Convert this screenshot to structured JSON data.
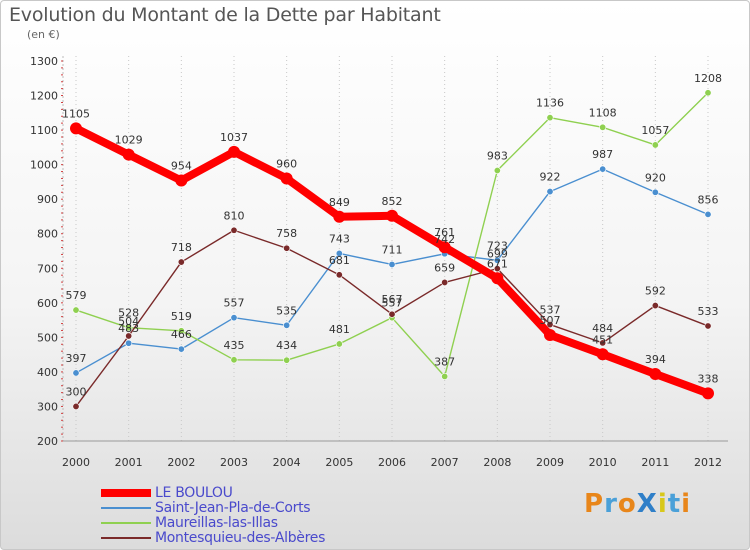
{
  "title": "Evolution du Montant de la Dette par Habitant",
  "subtitle": "(en €)",
  "logo": {
    "text": "ProXiti",
    "letter_colors": [
      "#e8861a",
      "#4aa0d8",
      "#e8861a",
      "#2f7fc8",
      "#d8c81a",
      "#4aa0d8",
      "#e8861a"
    ]
  },
  "chart_data": {
    "type": "line",
    "title": "Evolution du Montant de la Dette par Habitant",
    "ylabel": "(en €)",
    "xlabel": "",
    "x": [
      2000,
      2001,
      2002,
      2003,
      2004,
      2005,
      2006,
      2007,
      2008,
      2009,
      2010,
      2011,
      2012
    ],
    "ylim": [
      200,
      1300
    ],
    "yticks": [
      200,
      300,
      400,
      500,
      600,
      700,
      800,
      900,
      1000,
      1100,
      1200,
      1300
    ],
    "grid": "vertical-dotted",
    "legend_placement": "bottom-left",
    "series": [
      {
        "name": "LE BOULOU",
        "color": "#ff0000",
        "values": [
          1105,
          1029,
          954,
          1037,
          960,
          849,
          852,
          761,
          671,
          507,
          451,
          394,
          338
        ]
      },
      {
        "name": "Saint-Jean-Pla-de-Corts",
        "color": "#4a8fd0",
        "values": [
          397,
          483,
          466,
          557,
          535,
          743,
          711,
          742,
          723,
          922,
          987,
          920,
          856
        ]
      },
      {
        "name": "Maureillas-las-Illas",
        "color": "#8fd050",
        "values": [
          579,
          528,
          519,
          435,
          434,
          481,
          557,
          387,
          983,
          1136,
          1108,
          1057,
          1208
        ]
      },
      {
        "name": "Montesquieu-des-Albères",
        "color": "#7a2a2a",
        "values": [
          300,
          504,
          718,
          810,
          758,
          681,
          567,
          659,
          699,
          537,
          484,
          592,
          533
        ]
      }
    ]
  }
}
